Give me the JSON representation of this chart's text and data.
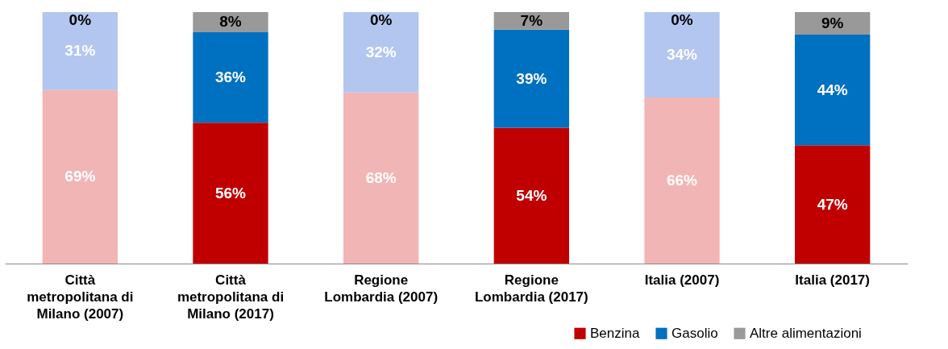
{
  "chart_data": {
    "type": "bar",
    "stacked": true,
    "categories": [
      "Città metropolitana di Milano (2007)",
      "Città metropolitana di Milano (2017)",
      "Regione Lombardia (2007)",
      "Regione Lombardia (2017)",
      "Italia (2007)",
      "Italia (2017)"
    ],
    "series": [
      {
        "name": "Benzina",
        "color": "#c00000",
        "colors": [
          "#f2b5b5",
          "#c00000",
          "#f2b5b5",
          "#c00000",
          "#f2b5b5",
          "#c00000"
        ],
        "values": [
          69,
          56,
          68,
          54,
          66,
          47
        ],
        "value_labels": [
          "69%",
          "56%",
          "68%",
          "54%",
          "66%",
          "47%"
        ]
      },
      {
        "name": "Gasolio",
        "color": "#0070c0",
        "colors": [
          "#b3c6f0",
          "#0070c0",
          "#b3c6f0",
          "#0070c0",
          "#b3c6f0",
          "#0070c0"
        ],
        "values": [
          31,
          36,
          32,
          39,
          34,
          44
        ],
        "value_labels": [
          "31%",
          "36%",
          "32%",
          "39%",
          "34%",
          "44%"
        ]
      },
      {
        "name": "Altre alimentazioni",
        "color": "#999999",
        "values": [
          0,
          8,
          0,
          7,
          0,
          9
        ],
        "value_labels": [
          "0%",
          "8%",
          "0%",
          "7%",
          "0%",
          "9%"
        ]
      }
    ],
    "ylim": [
      0,
      100
    ],
    "legend": "bottom right"
  }
}
